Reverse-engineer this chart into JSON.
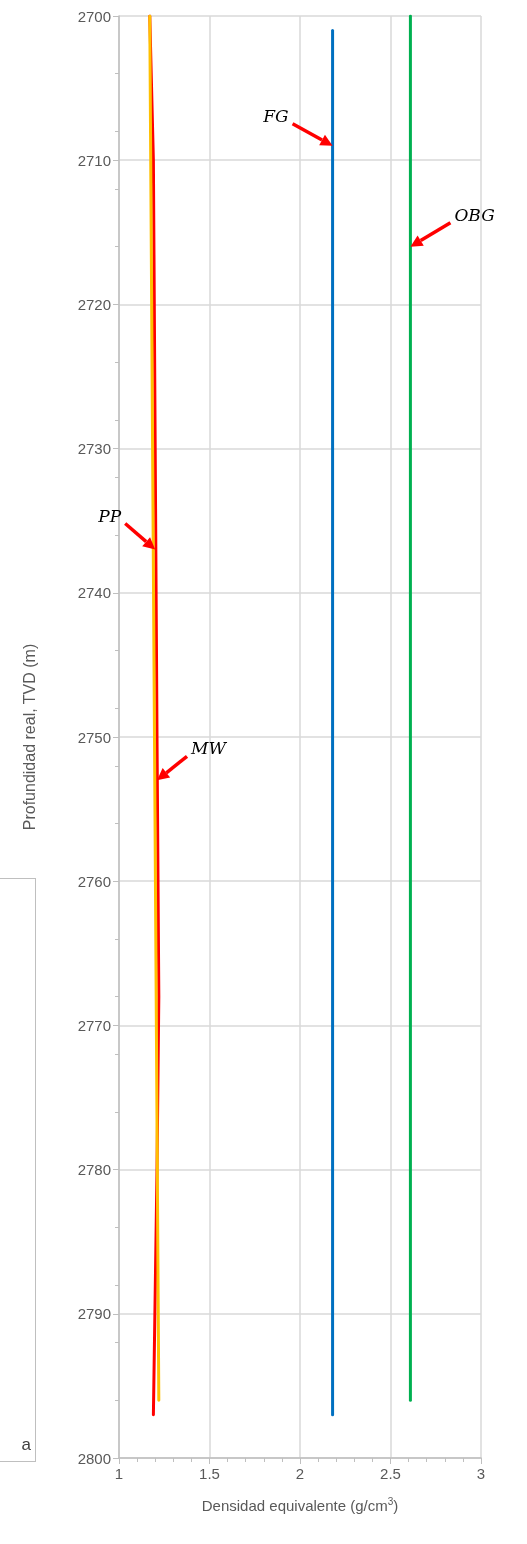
{
  "chart_data": {
    "type": "line",
    "xlabel": "Densidad equivalente (g/cm$^{3}$)",
    "ylabel": "Profundidad real, TVD (m)",
    "xlim": [
      1,
      3
    ],
    "xticks": [
      1,
      1.5,
      2,
      2.5,
      3
    ],
    "ylim": [
      2800,
      2700
    ],
    "yticks": [
      2700,
      2710,
      2720,
      2730,
      2740,
      2750,
      2760,
      2770,
      2780,
      2790,
      2800
    ],
    "grid": true,
    "marker": "none",
    "line_style": "solid",
    "series": [
      {
        "color": "#ff0000",
        "x": [
          1.17,
          1.19,
          1.21,
          1.22,
          1.21,
          1.19
        ],
        "values": [
          2700,
          2710,
          2750,
          2768,
          2780,
          2797
        ]
      },
      {
        "color": "#ffc000",
        "x": [
          1.17,
          1.22
        ],
        "values": [
          2700,
          2796
        ]
      },
      {
        "color": "#0070c0",
        "x": [
          2.18,
          2.18
        ],
        "values": [
          2701,
          2797
        ]
      },
      {
        "color": "#00b050",
        "x": [
          2.61,
          2.61
        ],
        "values": [
          2700,
          2796
        ]
      }
    ],
    "annotations": [
      {
        "text": "FG",
        "x": 2.18,
        "y": 2709
      },
      {
        "text": "OBG",
        "x": 2.61,
        "y": 2716
      },
      {
        "text": "PP",
        "x": 1.2,
        "y": 2737
      },
      {
        "text": "MW",
        "x": 1.21,
        "y": 2753
      },
      "a"
    ]
  }
}
